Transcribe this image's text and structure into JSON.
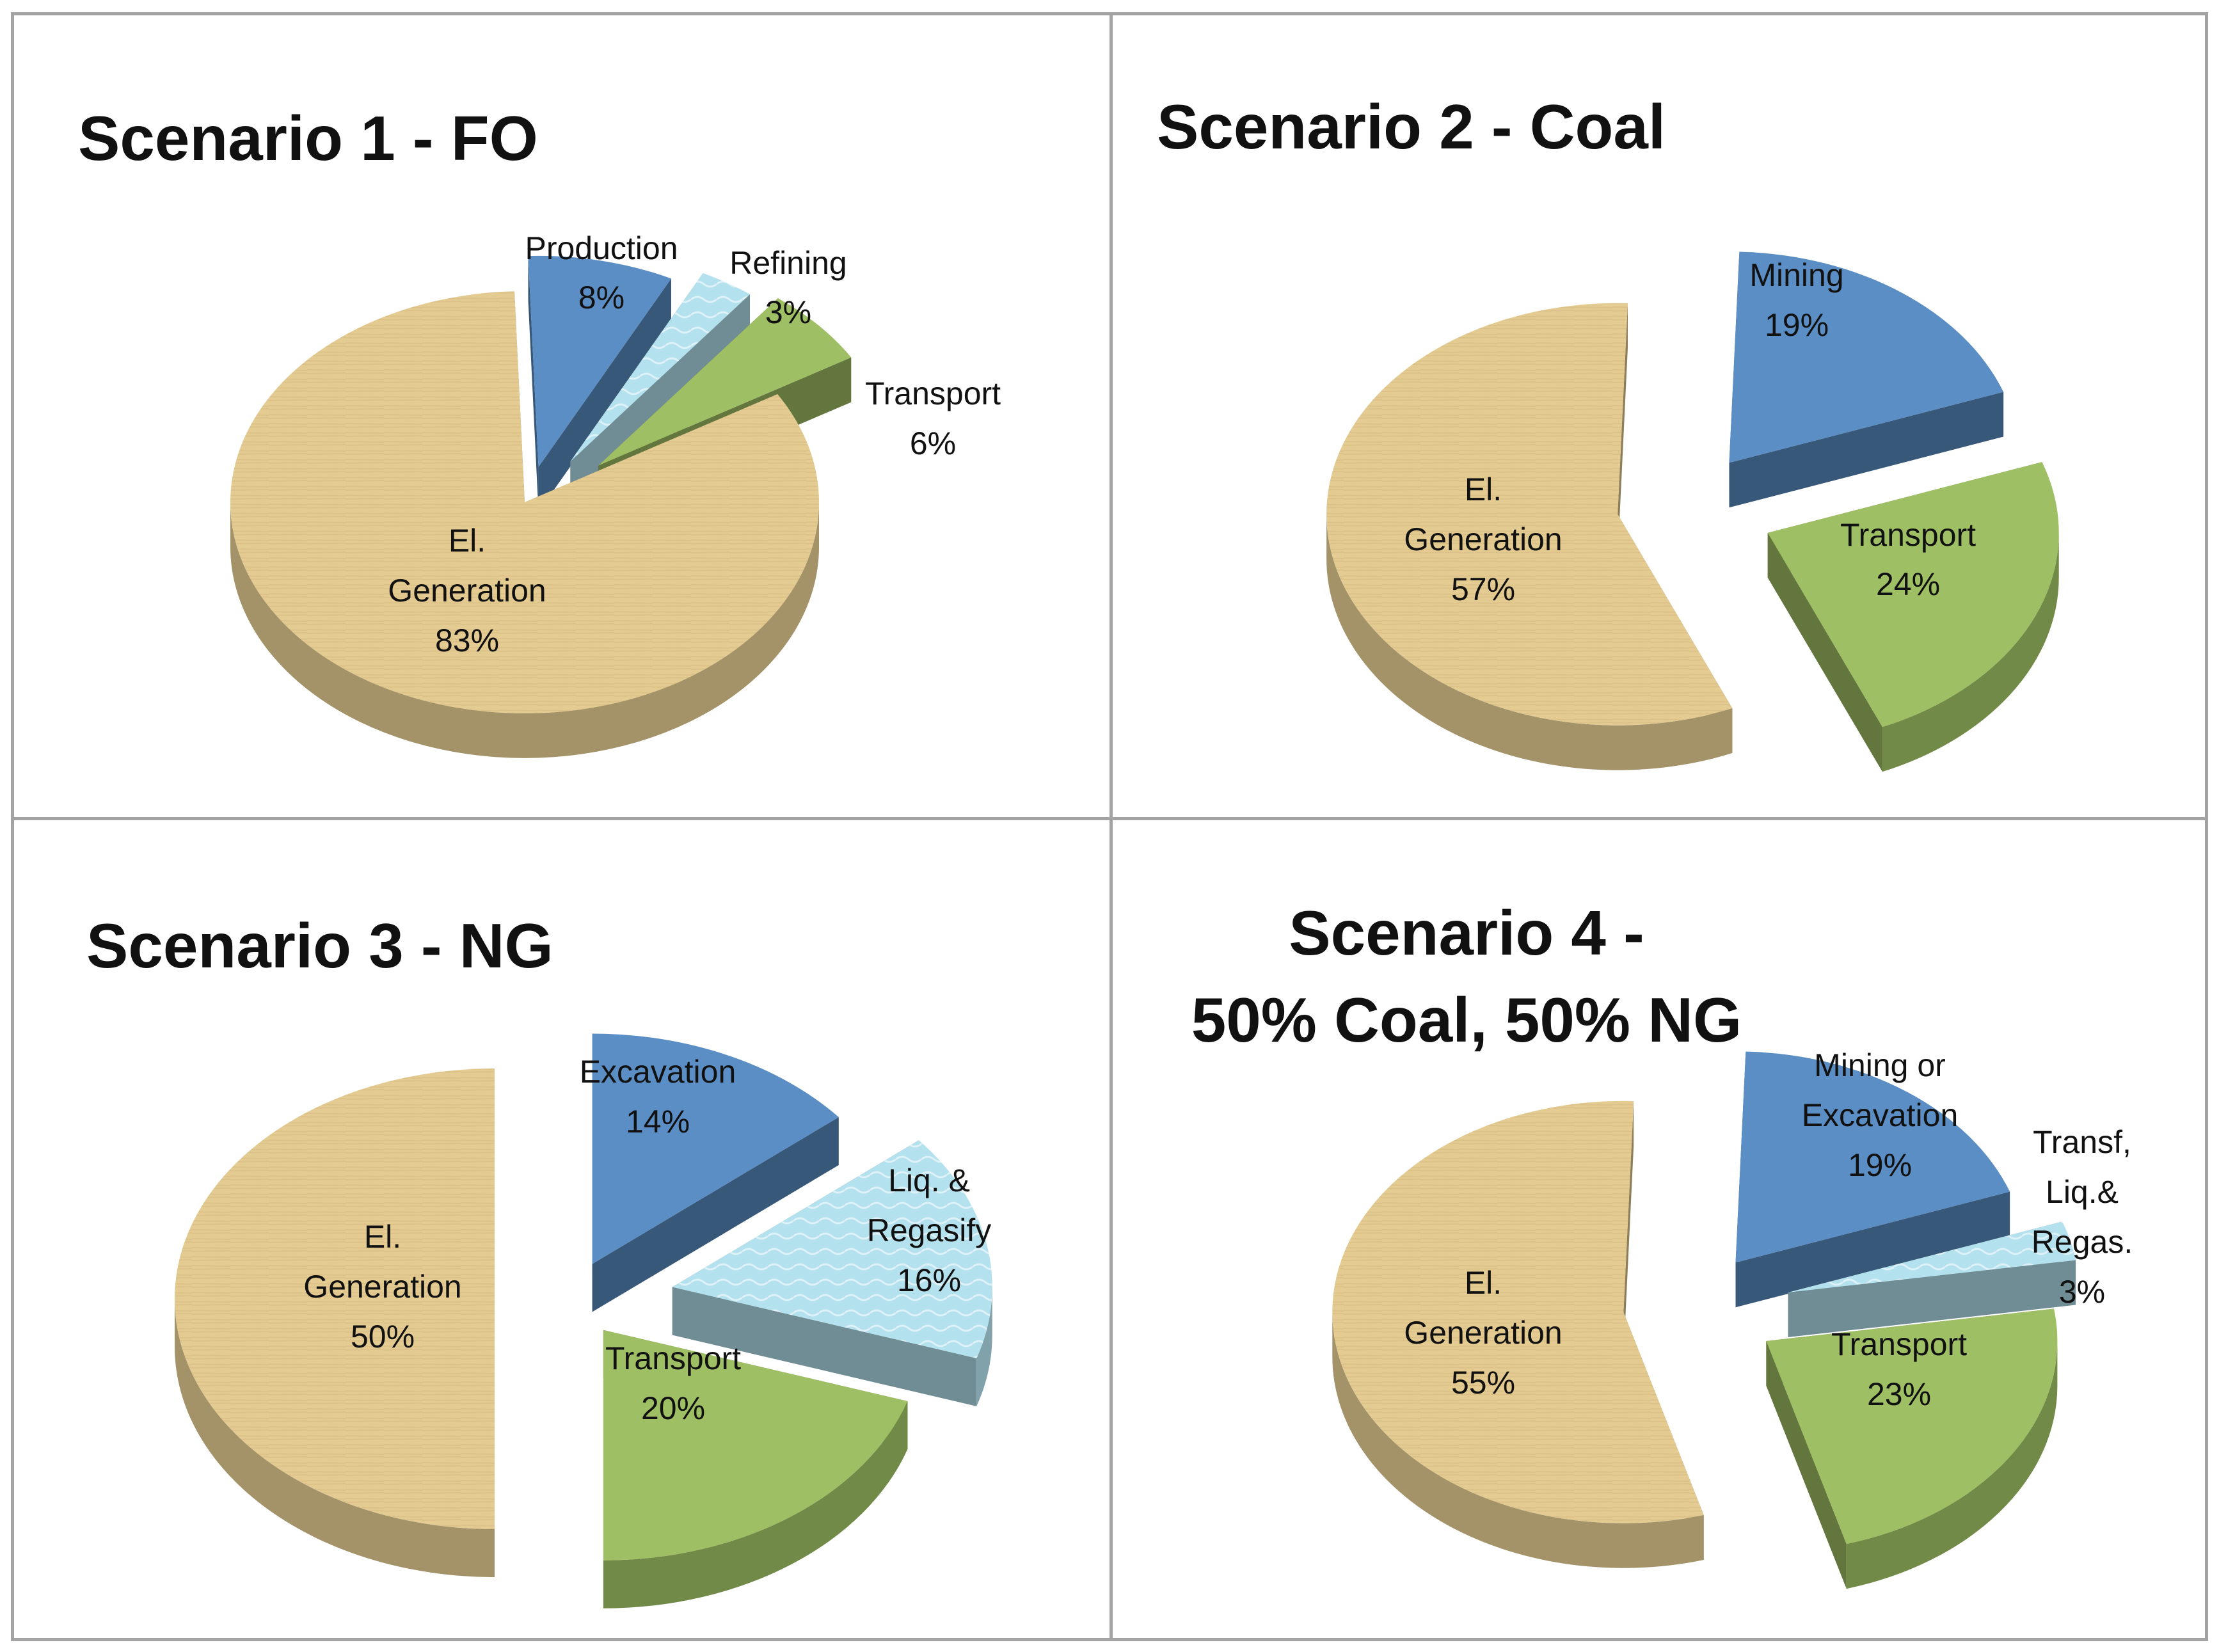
{
  "colors": {
    "production": "#5b8ec4",
    "refining": "#b4e1ee",
    "transport": "#9ebf63",
    "generation": "#e4cb91",
    "border": "#a3a3a3"
  },
  "chart_data": [
    {
      "type": "pie",
      "title": "Scenario 1 - FO",
      "slices": [
        {
          "label": "Production",
          "value": 8,
          "pct_label": "8%",
          "color_key": "production"
        },
        {
          "label": "Refining",
          "value": 3,
          "pct_label": "3%",
          "color_key": "refining"
        },
        {
          "label": "Transport",
          "value": 6,
          "pct_label": "6%",
          "color_key": "transport"
        },
        {
          "label": "El. Generation",
          "value": 83,
          "pct_label": "83%",
          "color_key": "generation"
        }
      ]
    },
    {
      "type": "pie",
      "title": "Scenario 2 - Coal",
      "slices": [
        {
          "label": "Mining",
          "value": 19,
          "pct_label": "19%",
          "color_key": "production"
        },
        {
          "label": "",
          "value": 0,
          "pct_label": "",
          "color_key": "refining"
        },
        {
          "label": "Transport",
          "value": 24,
          "pct_label": "24%",
          "color_key": "transport"
        },
        {
          "label": "El. Generation",
          "value": 57,
          "pct_label": "57%",
          "color_key": "generation"
        }
      ]
    },
    {
      "type": "pie",
      "title": "Scenario 3 - NG",
      "slices": [
        {
          "label": "Excavation",
          "value": 14,
          "pct_label": "14%",
          "color_key": "production"
        },
        {
          "label": "Liq. & Regasify",
          "value": 16,
          "pct_label": "16%",
          "color_key": "refining"
        },
        {
          "label": "Transport",
          "value": 20,
          "pct_label": "20%",
          "color_key": "transport"
        },
        {
          "label": "El. Generation",
          "value": 50,
          "pct_label": "50%",
          "color_key": "generation"
        }
      ]
    },
    {
      "type": "pie",
      "title": "Scenario 4 - 50% Coal, 50% NG",
      "title_lines": [
        "Scenario 4 -",
        "50% Coal, 50% NG"
      ],
      "slices": [
        {
          "label": "Mining or Excavation",
          "value": 19,
          "pct_label": "19%",
          "color_key": "production"
        },
        {
          "label": "Transf, Liq.& Regas.",
          "value": 3,
          "pct_label": "3%",
          "color_key": "refining"
        },
        {
          "label": "Transport",
          "value": 23,
          "pct_label": "23%",
          "color_key": "transport"
        },
        {
          "label": "El. Generation",
          "value": 55,
          "pct_label": "55%",
          "color_key": "generation"
        }
      ]
    }
  ]
}
